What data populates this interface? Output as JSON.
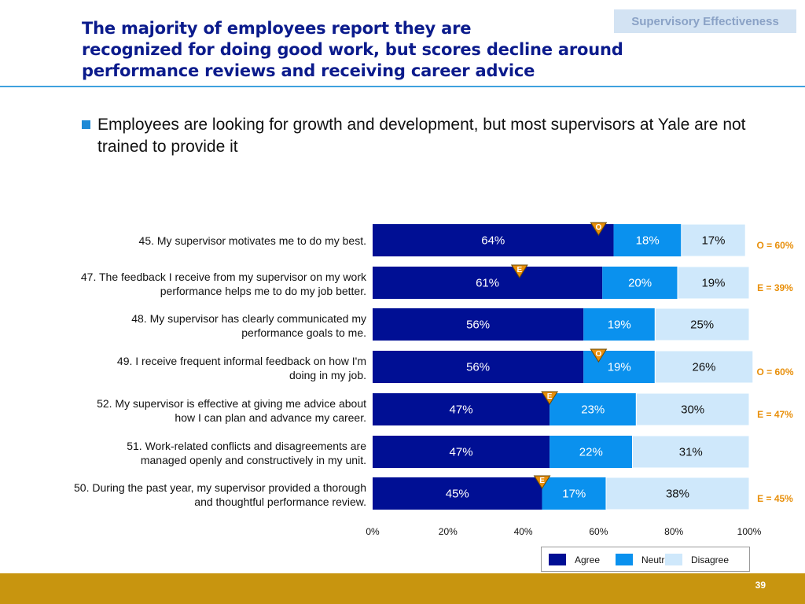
{
  "slide": {
    "title_lines": [
      "The majority of employees report they are",
      "recognized for doing good work, but scores decline around",
      "performance reviews and receiving career advice"
    ],
    "section_tag": "Supervisory Effectiveness",
    "bullet": "Employees are looking for growth and development, but most supervisors at Yale are not trained to provide it",
    "page_number": "39"
  },
  "colors": {
    "title": "#0b1b8c",
    "agree": "#000f94",
    "neutral": "#0a91ee",
    "disagree": "#cfe8fb",
    "benchmark": "#e88f0a",
    "footer": "#c8950f"
  },
  "chart_data": {
    "type": "bar",
    "orientation": "horizontal",
    "stacked": true,
    "categories": [
      [
        "45. My supervisor motivates me to do my best."
      ],
      [
        "47. The feedback I receive from my supervisor on my work",
        "performance helps me to do my job better."
      ],
      [
        "48. My supervisor has clearly communicated my",
        "performance goals to me."
      ],
      [
        "49. I receive frequent informal feedback on how I'm",
        "doing in my job."
      ],
      [
        "52. My supervisor is effective at giving me advice about",
        "how I can plan and advance my career."
      ],
      [
        "51. Work-related conflicts and disagreements are",
        "managed openly and constructively in my unit."
      ],
      [
        "50. During the past year, my supervisor provided a thorough",
        "and thoughtful performance review."
      ]
    ],
    "series": [
      {
        "name": "Agree",
        "values": [
          64,
          61,
          56,
          56,
          47,
          47,
          45
        ],
        "labels": [
          "64%",
          "61%",
          "56%",
          "56%",
          "47%",
          "47%",
          "45%"
        ]
      },
      {
        "name": "Neutral",
        "values": [
          18,
          20,
          19,
          19,
          23,
          22,
          17
        ],
        "labels": [
          "18%",
          "20%",
          "19%",
          "19%",
          "23%",
          "22%",
          "17%"
        ]
      },
      {
        "name": "Disagree",
        "values": [
          17,
          19,
          25,
          26,
          30,
          31,
          38
        ],
        "labels": [
          "17%",
          "19%",
          "25%",
          "26%",
          "30%",
          "31%",
          "38%"
        ]
      }
    ],
    "benchmarks": [
      {
        "letter": "O",
        "value": 60,
        "label": "O = 60%"
      },
      {
        "letter": "E",
        "value": 39,
        "label": "E = 39%"
      },
      null,
      {
        "letter": "O",
        "value": 60,
        "label": "O = 60%"
      },
      {
        "letter": "E",
        "value": 47,
        "label": "E = 47%"
      },
      null,
      {
        "letter": "E",
        "value": 45,
        "label": "E = 45%"
      }
    ],
    "xlim": [
      0,
      100
    ],
    "x_ticks": [
      "0%",
      "20%",
      "40%",
      "60%",
      "80%",
      "100%"
    ],
    "legend": {
      "placement": "bottom-right",
      "entries": [
        "Agree",
        "Neutral",
        "Disagree"
      ]
    }
  }
}
